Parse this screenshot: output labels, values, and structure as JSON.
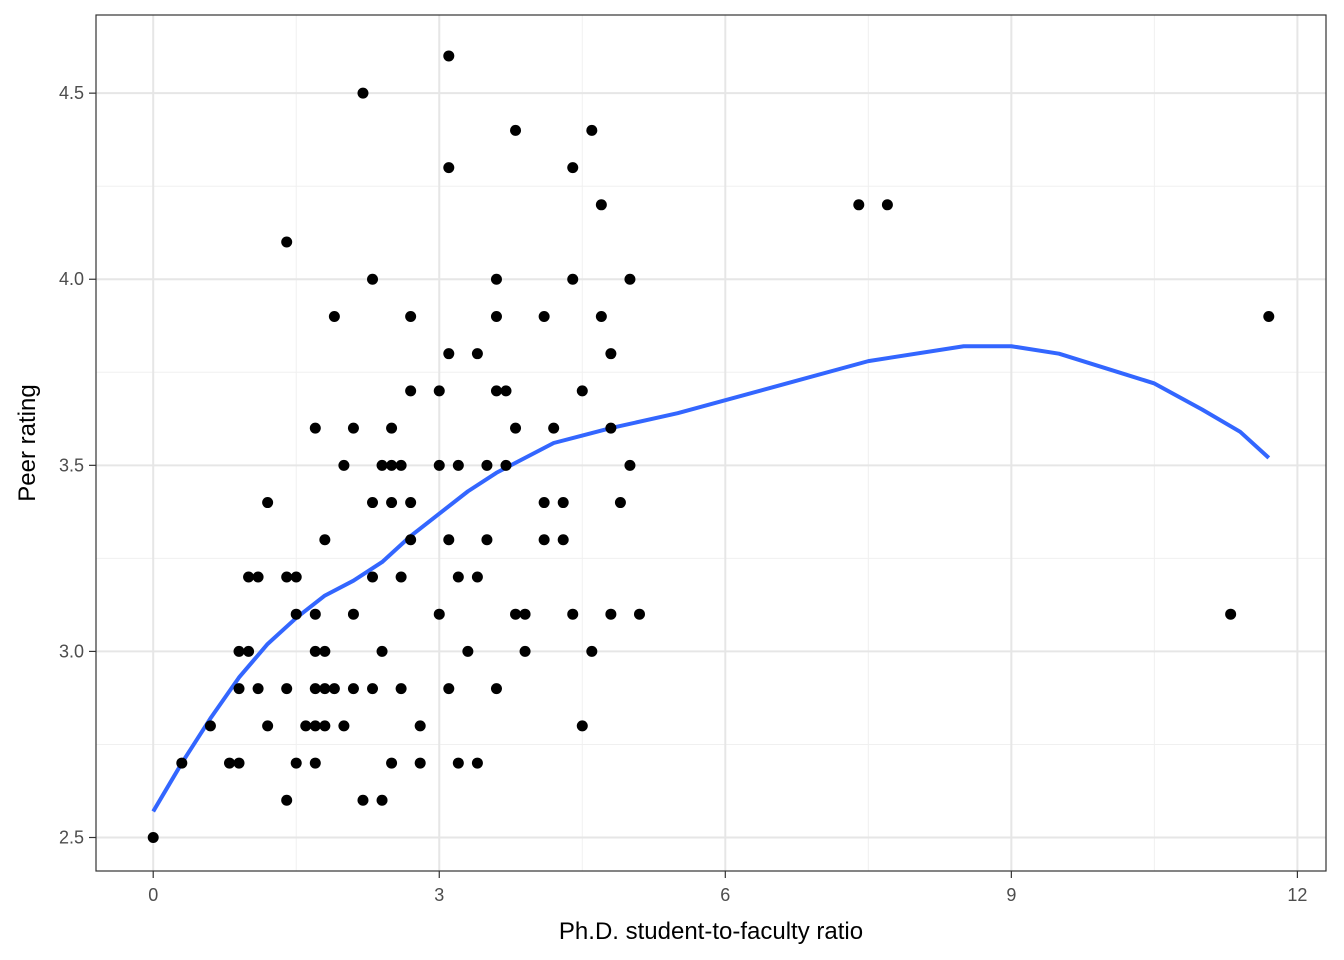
{
  "chart_data": {
    "type": "scatter",
    "xlabel": "Ph.D. student-to-faculty ratio",
    "ylabel": "Peer rating",
    "xlim": [
      -0.6,
      12.3
    ],
    "ylim": [
      2.41,
      4.71
    ],
    "x_ticks": [
      0,
      3,
      6,
      9,
      12
    ],
    "x_tick_labels": [
      "0",
      "3",
      "6",
      "9",
      "12"
    ],
    "y_ticks": [
      2.5,
      3.0,
      3.5,
      4.0,
      4.5
    ],
    "y_tick_labels": [
      "2.5",
      "3.0",
      "3.5",
      "4.0",
      "4.5"
    ],
    "grid": true,
    "point_color": "#000000",
    "points": [
      [
        0.0,
        2.5
      ],
      [
        0.3,
        2.7
      ],
      [
        0.6,
        2.8
      ],
      [
        0.8,
        2.7
      ],
      [
        0.9,
        2.7
      ],
      [
        0.9,
        2.9
      ],
      [
        0.9,
        3.0
      ],
      [
        1.0,
        3.0
      ],
      [
        1.0,
        3.2
      ],
      [
        1.1,
        3.2
      ],
      [
        1.1,
        2.9
      ],
      [
        1.2,
        3.4
      ],
      [
        1.2,
        2.8
      ],
      [
        1.4,
        4.1
      ],
      [
        1.4,
        3.2
      ],
      [
        1.4,
        2.9
      ],
      [
        1.4,
        2.6
      ],
      [
        1.5,
        3.2
      ],
      [
        1.5,
        3.1
      ],
      [
        1.5,
        2.7
      ],
      [
        1.6,
        2.8
      ],
      [
        1.7,
        3.6
      ],
      [
        1.7,
        3.1
      ],
      [
        1.7,
        3.0
      ],
      [
        1.7,
        2.9
      ],
      [
        1.7,
        2.8
      ],
      [
        1.7,
        2.7
      ],
      [
        1.8,
        3.3
      ],
      [
        1.8,
        3.0
      ],
      [
        1.8,
        2.9
      ],
      [
        1.8,
        2.8
      ],
      [
        1.9,
        3.9
      ],
      [
        1.9,
        2.9
      ],
      [
        2.0,
        3.5
      ],
      [
        2.0,
        2.8
      ],
      [
        2.1,
        3.6
      ],
      [
        2.1,
        3.1
      ],
      [
        2.1,
        2.9
      ],
      [
        2.2,
        4.5
      ],
      [
        2.2,
        2.6
      ],
      [
        2.3,
        4.0
      ],
      [
        2.3,
        3.4
      ],
      [
        2.3,
        3.2
      ],
      [
        2.3,
        2.9
      ],
      [
        2.4,
        3.5
      ],
      [
        2.4,
        3.0
      ],
      [
        2.4,
        2.6
      ],
      [
        2.5,
        3.6
      ],
      [
        2.5,
        3.5
      ],
      [
        2.5,
        3.4
      ],
      [
        2.5,
        2.7
      ],
      [
        2.6,
        3.5
      ],
      [
        2.6,
        3.2
      ],
      [
        2.6,
        2.9
      ],
      [
        2.7,
        3.9
      ],
      [
        2.7,
        3.7
      ],
      [
        2.7,
        3.4
      ],
      [
        2.7,
        3.3
      ],
      [
        2.8,
        2.8
      ],
      [
        2.8,
        2.7
      ],
      [
        3.0,
        3.7
      ],
      [
        3.0,
        3.5
      ],
      [
        3.0,
        3.1
      ],
      [
        3.1,
        4.6
      ],
      [
        3.1,
        4.3
      ],
      [
        3.1,
        3.8
      ],
      [
        3.1,
        3.3
      ],
      [
        3.1,
        2.9
      ],
      [
        3.2,
        3.5
      ],
      [
        3.2,
        3.2
      ],
      [
        3.2,
        2.7
      ],
      [
        3.3,
        3.0
      ],
      [
        3.4,
        3.8
      ],
      [
        3.4,
        3.2
      ],
      [
        3.4,
        2.7
      ],
      [
        3.5,
        3.5
      ],
      [
        3.5,
        3.3
      ],
      [
        3.6,
        4.0
      ],
      [
        3.6,
        3.9
      ],
      [
        3.6,
        3.7
      ],
      [
        3.6,
        2.9
      ],
      [
        3.7,
        3.7
      ],
      [
        3.7,
        3.5
      ],
      [
        3.8,
        4.4
      ],
      [
        3.8,
        3.6
      ],
      [
        3.8,
        3.1
      ],
      [
        3.9,
        3.1
      ],
      [
        3.9,
        3.0
      ],
      [
        4.1,
        3.9
      ],
      [
        4.1,
        3.4
      ],
      [
        4.1,
        3.3
      ],
      [
        4.2,
        3.6
      ],
      [
        4.3,
        3.4
      ],
      [
        4.3,
        3.3
      ],
      [
        4.4,
        4.3
      ],
      [
        4.4,
        4.0
      ],
      [
        4.4,
        3.1
      ],
      [
        4.5,
        3.7
      ],
      [
        4.5,
        2.8
      ],
      [
        4.6,
        4.4
      ],
      [
        4.6,
        3.0
      ],
      [
        4.7,
        4.2
      ],
      [
        4.7,
        3.9
      ],
      [
        4.8,
        3.8
      ],
      [
        4.8,
        3.6
      ],
      [
        4.8,
        3.1
      ],
      [
        4.9,
        3.4
      ],
      [
        5.0,
        4.0
      ],
      [
        5.0,
        3.5
      ],
      [
        5.1,
        3.1
      ],
      [
        7.4,
        4.2
      ],
      [
        7.7,
        4.2
      ],
      [
        11.3,
        3.1
      ],
      [
        11.7,
        3.9
      ]
    ],
    "smooth_line": {
      "color": "#3366FF",
      "x": [
        0.0,
        0.3,
        0.6,
        0.9,
        1.2,
        1.5,
        1.8,
        2.1,
        2.4,
        2.7,
        3.0,
        3.3,
        3.6,
        3.9,
        4.2,
        4.5,
        4.8,
        5.5,
        6.5,
        7.5,
        8.5,
        9.0,
        9.5,
        10.0,
        10.5,
        11.0,
        11.4,
        11.7
      ],
      "y": [
        2.57,
        2.7,
        2.82,
        2.93,
        3.02,
        3.09,
        3.15,
        3.19,
        3.24,
        3.31,
        3.37,
        3.43,
        3.48,
        3.52,
        3.56,
        3.58,
        3.6,
        3.64,
        3.71,
        3.78,
        3.82,
        3.82,
        3.8,
        3.76,
        3.72,
        3.65,
        3.59,
        3.52
      ]
    }
  }
}
